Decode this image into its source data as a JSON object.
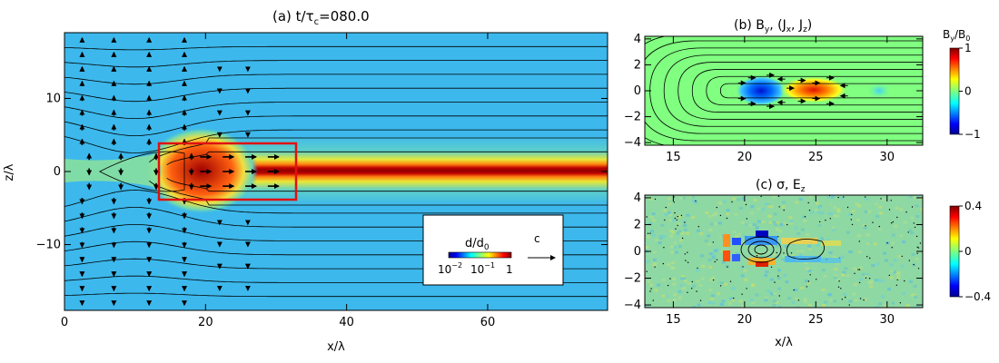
{
  "chart_data": [
    {
      "type": "heatmap",
      "panel": "a",
      "title": "(a) t/τ",
      "title_sub": "c",
      "title_value": "=080.0",
      "xlabel": "x/λ",
      "ylabel": "z/λ",
      "xlim": [
        0,
        77
      ],
      "ylim": [
        -19,
        19
      ],
      "xticks": [
        0,
        20,
        40,
        60
      ],
      "yticks": [
        -10,
        0,
        10
      ],
      "xtick_labels": [
        "0",
        "20",
        "40",
        "60"
      ],
      "ytick_labels": [
        "−10",
        "0",
        "10"
      ],
      "quantity": "d/d0",
      "colorbar": {
        "title_main": "d/d",
        "title_sub": "0",
        "scale": "log",
        "tick_labels": [
          "10",
          "10",
          "1"
        ],
        "tick_exponents": [
          "−2",
          "−1",
          ""
        ]
      },
      "arrow_label": "c",
      "highlight_box": {
        "x": [
          14.5,
          32
        ],
        "z": [
          -4,
          4
        ]
      },
      "features": {
        "shocked_layer_start_x": 18,
        "flux_pileup_x": [
          3,
          14
        ]
      }
    },
    {
      "type": "heatmap",
      "panel": "b",
      "title": "(b) B",
      "title_sub": "y",
      "title_rest": ", (J",
      "title_sub2": "x",
      "title_rest2": ", J",
      "title_sub3": "z",
      "title_end": ")",
      "xlim": [
        13,
        32.5
      ],
      "ylim": [
        -4.2,
        4.2
      ],
      "xticks": [
        15,
        20,
        25,
        30
      ],
      "yticks": [
        -4,
        -2,
        0,
        2,
        4
      ],
      "xtick_labels": [
        "15",
        "20",
        "25",
        "30"
      ],
      "ytick_labels": [
        "−4",
        "−2",
        "0",
        "2",
        "4"
      ],
      "colorbar": {
        "title_main": "B",
        "title_sub": "y",
        "title_mid": "/B",
        "title_sub2": "0",
        "range": [
          -1,
          1
        ],
        "tick_values": [
          1,
          0,
          -1
        ],
        "tick_labels": [
          "1",
          "0",
          "−1"
        ]
      },
      "features": {
        "negative_blob": {
          "x": 21.2,
          "z": 0,
          "value": -0.8
        },
        "positive_blob": {
          "x": 24.7,
          "z": 0,
          "value": 0.9
        },
        "weak_blob": {
          "x": 29.5,
          "z": 0,
          "value": -0.25
        }
      }
    },
    {
      "type": "heatmap",
      "panel": "c",
      "title": "(c) σ, E",
      "title_sub": "z",
      "xlabel": "x/λ",
      "xlim": [
        13,
        32.5
      ],
      "ylim": [
        -4.2,
        4.2
      ],
      "xticks": [
        15,
        20,
        25,
        30
      ],
      "yticks": [
        -4,
        -2,
        0,
        2,
        4
      ],
      "xtick_labels": [
        "15",
        "20",
        "25",
        "30"
      ],
      "ytick_labels": [
        "−4",
        "−2",
        "0",
        "2",
        "4"
      ],
      "colorbar": {
        "range": [
          -0.4,
          0.4
        ],
        "tick_values": [
          0.4,
          0,
          -0.4
        ],
        "tick_labels": [
          "0.4",
          "0",
          "−0.4"
        ]
      },
      "features": {
        "contour_centers": [
          {
            "x": 21.2,
            "z": 0
          },
          {
            "x": 24.5,
            "z": 0
          }
        ]
      }
    }
  ],
  "colors": {
    "jet": [
      "#00008f",
      "#0000ff",
      "#0080ff",
      "#00ffff",
      "#80ff80",
      "#ffff00",
      "#ff8000",
      "#ff0000",
      "#800000"
    ],
    "background_field": "#3cb8ec",
    "panel_c_field": "#8ed8a4",
    "box": "#e01010"
  }
}
